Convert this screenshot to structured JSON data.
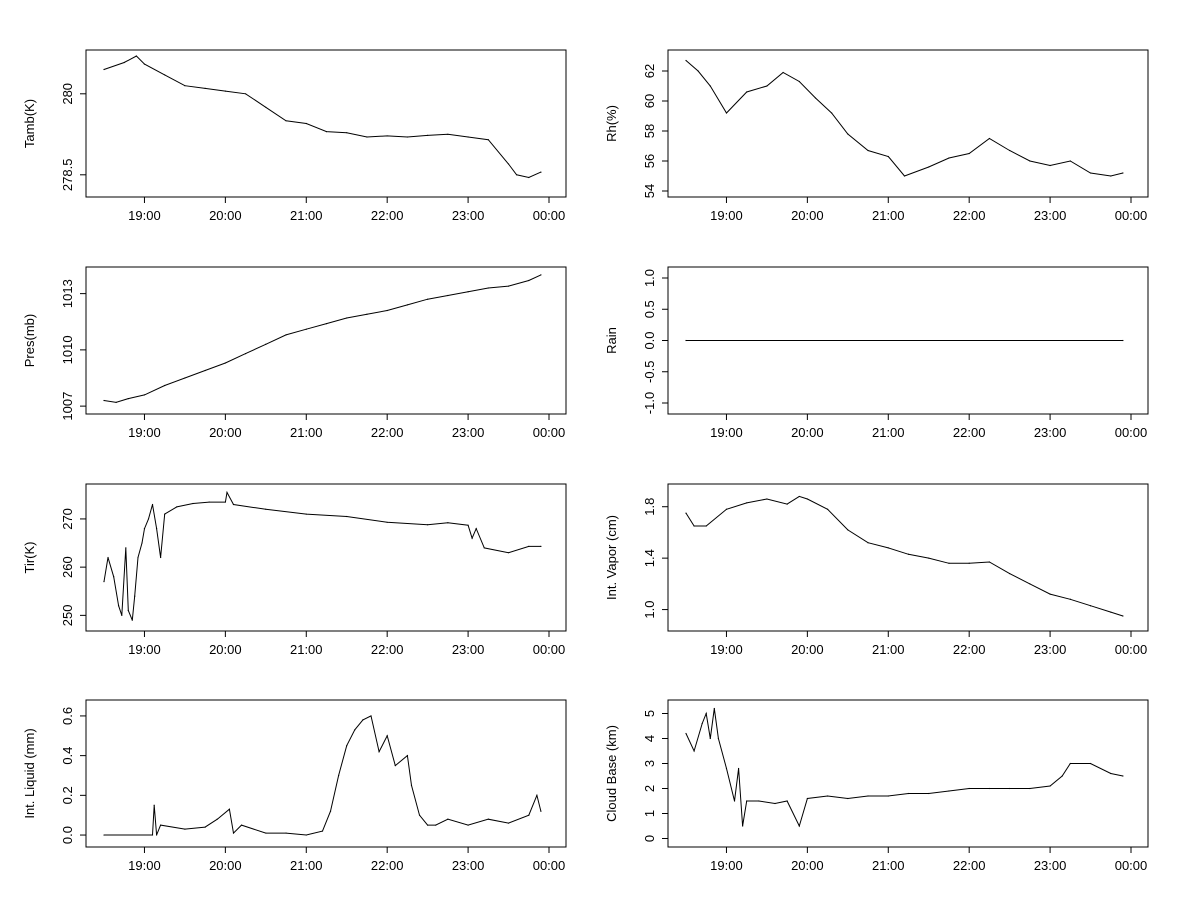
{
  "chart_data": [
    {
      "type": "line",
      "ylabel": "Tamb(K)",
      "yticks": [
        278.5,
        280.0
      ],
      "ylim": [
        278.2,
        280.7
      ],
      "xlabels": [
        "19:00",
        "20:00",
        "21:00",
        "22:00",
        "23:00",
        "00:00"
      ],
      "x_hours": [
        18.5,
        18.75,
        18.9,
        19.0,
        19.25,
        19.5,
        19.75,
        20.0,
        20.25,
        20.5,
        20.75,
        21.0,
        21.25,
        21.5,
        21.75,
        22.0,
        22.25,
        22.5,
        22.75,
        23.0,
        23.25,
        23.5,
        23.6,
        23.75,
        23.9
      ],
      "values": [
        280.45,
        280.58,
        280.7,
        280.55,
        280.35,
        280.15,
        280.1,
        280.05,
        280.0,
        279.75,
        279.5,
        279.45,
        279.3,
        279.28,
        279.2,
        279.22,
        279.2,
        279.23,
        279.25,
        279.2,
        279.15,
        278.7,
        278.5,
        278.45,
        278.55
      ]
    },
    {
      "type": "line",
      "ylabel": "Rh(%)",
      "yticks": [
        54,
        56,
        58,
        60,
        62
      ],
      "ylim": [
        54,
        63
      ],
      "xlabels": [
        "19:00",
        "20:00",
        "21:00",
        "22:00",
        "23:00",
        "00:00"
      ],
      "x_hours": [
        18.5,
        18.65,
        18.8,
        19.0,
        19.25,
        19.5,
        19.7,
        19.9,
        20.1,
        20.3,
        20.5,
        20.75,
        21.0,
        21.2,
        21.5,
        21.75,
        22.0,
        22.25,
        22.5,
        22.75,
        23.0,
        23.25,
        23.5,
        23.75,
        23.9
      ],
      "values": [
        62.7,
        62.0,
        61.0,
        59.2,
        60.6,
        61.0,
        61.9,
        61.3,
        60.2,
        59.2,
        57.8,
        56.7,
        56.3,
        55.0,
        55.6,
        56.2,
        56.5,
        57.5,
        56.7,
        56.0,
        55.7,
        56.0,
        55.2,
        55.0,
        55.2
      ]
    },
    {
      "type": "line",
      "ylabel": "Pres(mb)",
      "yticks": [
        1007,
        1010,
        1013
      ],
      "ylim": [
        1006.9,
        1014.1
      ],
      "xlabels": [
        "19:00",
        "20:00",
        "21:00",
        "22:00",
        "23:00",
        "00:00"
      ],
      "x_hours": [
        18.5,
        18.65,
        18.8,
        19.0,
        19.25,
        19.5,
        19.75,
        20.0,
        20.25,
        20.5,
        20.75,
        21.0,
        21.25,
        21.5,
        21.75,
        22.0,
        22.25,
        22.5,
        22.75,
        23.0,
        23.25,
        23.5,
        23.75,
        23.9
      ],
      "values": [
        1007.3,
        1007.2,
        1007.4,
        1007.6,
        1008.1,
        1008.5,
        1008.9,
        1009.3,
        1009.8,
        1010.3,
        1010.8,
        1011.1,
        1011.4,
        1011.7,
        1011.9,
        1012.1,
        1012.4,
        1012.7,
        1012.9,
        1013.1,
        1013.3,
        1013.4,
        1013.7,
        1014.0
      ]
    },
    {
      "type": "line",
      "ylabel": "Rain",
      "yticks": [
        -1.0,
        -0.5,
        0.0,
        0.5,
        1.0
      ],
      "ylim": [
        -1.08,
        1.08
      ],
      "xlabels": [
        "19:00",
        "20:00",
        "21:00",
        "22:00",
        "23:00",
        "00:00"
      ],
      "x_hours": [
        18.5,
        23.9
      ],
      "values": [
        0.0,
        0.0
      ]
    },
    {
      "type": "line",
      "ylabel": "Tir(K)",
      "yticks": [
        250,
        260,
        270
      ],
      "ylim": [
        248,
        276
      ],
      "xlabels": [
        "19:00",
        "20:00",
        "21:00",
        "22:00",
        "23:00",
        "00:00"
      ],
      "x_hours": [
        18.5,
        18.55,
        18.62,
        18.68,
        18.72,
        18.77,
        18.8,
        18.85,
        18.88,
        18.92,
        18.97,
        19.0,
        19.05,
        19.1,
        19.15,
        19.2,
        19.25,
        19.4,
        19.6,
        19.8,
        20.0,
        20.02,
        20.1,
        20.5,
        21.0,
        21.5,
        22.0,
        22.5,
        22.75,
        23.0,
        23.05,
        23.1,
        23.2,
        23.5,
        23.75,
        23.9
      ],
      "values": [
        257,
        262,
        258,
        252,
        250,
        264,
        251,
        249,
        254,
        262,
        265,
        268,
        270,
        273,
        268,
        262,
        271,
        272.5,
        273.2,
        273.5,
        273.5,
        275.5,
        273.0,
        272.0,
        271.0,
        270.5,
        269.3,
        268.8,
        269.2,
        268.7,
        266.0,
        268.0,
        264.0,
        263.0,
        264.3,
        264.3
      ]
    },
    {
      "type": "line",
      "ylabel": "Int. Vapor (cm)",
      "yticks": [
        1.0,
        1.4,
        1.8
      ],
      "ylim": [
        0.88,
        1.93
      ],
      "xlabels": [
        "19:00",
        "20:00",
        "21:00",
        "22:00",
        "23:00",
        "00:00"
      ],
      "x_hours": [
        18.5,
        18.6,
        18.75,
        19.0,
        19.25,
        19.5,
        19.75,
        19.9,
        20.0,
        20.25,
        20.5,
        20.75,
        21.0,
        21.25,
        21.5,
        21.75,
        22.0,
        22.25,
        22.5,
        22.75,
        23.0,
        23.25,
        23.5,
        23.75,
        23.9
      ],
      "values": [
        1.75,
        1.65,
        1.65,
        1.78,
        1.83,
        1.86,
        1.82,
        1.88,
        1.86,
        1.78,
        1.62,
        1.52,
        1.48,
        1.43,
        1.4,
        1.36,
        1.36,
        1.37,
        1.28,
        1.2,
        1.12,
        1.08,
        1.03,
        0.98,
        0.95
      ]
    },
    {
      "type": "line",
      "ylabel": "Int. Liquid (mm)",
      "yticks": [
        0.0,
        0.2,
        0.4,
        0.6
      ],
      "ylim": [
        -0.03,
        0.65
      ],
      "xlabels": [
        "19:00",
        "20:00",
        "21:00",
        "22:00",
        "23:00",
        "00:00"
      ],
      "x_hours": [
        18.5,
        19.1,
        19.12,
        19.15,
        19.2,
        19.5,
        19.75,
        19.9,
        20.05,
        20.1,
        20.2,
        20.5,
        20.75,
        21.0,
        21.2,
        21.3,
        21.4,
        21.5,
        21.6,
        21.7,
        21.8,
        21.9,
        22.0,
        22.1,
        22.25,
        22.3,
        22.4,
        22.5,
        22.6,
        22.75,
        23.0,
        23.25,
        23.5,
        23.75,
        23.85,
        23.9
      ],
      "values": [
        0.0,
        0.0,
        0.15,
        0.0,
        0.05,
        0.03,
        0.04,
        0.08,
        0.13,
        0.01,
        0.05,
        0.01,
        0.01,
        0.0,
        0.02,
        0.12,
        0.3,
        0.45,
        0.53,
        0.58,
        0.6,
        0.42,
        0.5,
        0.35,
        0.4,
        0.25,
        0.1,
        0.05,
        0.05,
        0.08,
        0.05,
        0.08,
        0.06,
        0.1,
        0.2,
        0.12
      ]
    },
    {
      "type": "line",
      "ylabel": "Cloud Base (km)",
      "yticks": [
        0,
        1,
        2,
        3,
        4,
        5
      ],
      "ylim": [
        -0.1,
        5.3
      ],
      "xlabels": [
        "19:00",
        "20:00",
        "21:00",
        "22:00",
        "23:00",
        "00:00"
      ],
      "x_hours": [
        18.5,
        18.6,
        18.7,
        18.75,
        18.8,
        18.85,
        18.9,
        19.0,
        19.1,
        19.15,
        19.2,
        19.25,
        19.4,
        19.6,
        19.75,
        19.9,
        20.0,
        20.25,
        20.5,
        20.75,
        21.0,
        21.25,
        21.5,
        21.75,
        22.0,
        22.25,
        22.5,
        22.75,
        23.0,
        23.15,
        23.25,
        23.5,
        23.75,
        23.9
      ],
      "values": [
        4.2,
        3.5,
        4.6,
        5.0,
        4.0,
        5.2,
        4.0,
        2.8,
        1.5,
        2.8,
        0.5,
        1.5,
        1.5,
        1.4,
        1.5,
        0.5,
        1.6,
        1.7,
        1.6,
        1.7,
        1.7,
        1.8,
        1.8,
        1.9,
        2.0,
        2.0,
        2.0,
        2.0,
        2.1,
        2.5,
        3.0,
        3.0,
        2.6,
        2.5
      ]
    }
  ]
}
